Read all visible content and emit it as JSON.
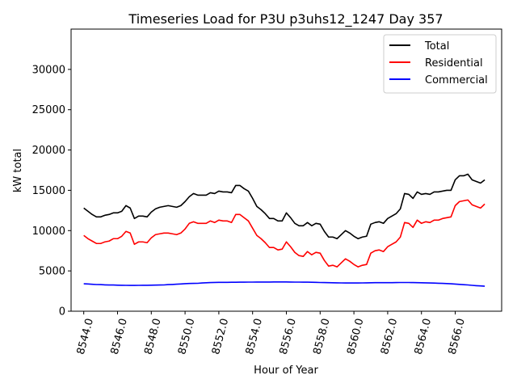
{
  "chart_data": {
    "type": "line",
    "title": "Timeseries Load for P3U p3uhs12_1247  Day 357",
    "xlabel": "Hour of Year",
    "ylabel": "kW total",
    "xlim": [
      8543.25,
      8568.75
    ],
    "ylim": [
      0,
      35000
    ],
    "xticks": [
      8544,
      8546,
      8548,
      8550,
      8552,
      8554,
      8556,
      8558,
      8560,
      8562,
      8564,
      8566
    ],
    "xtick_labels": [
      "8544.0",
      "8546.0",
      "8548.0",
      "8550.0",
      "8552.0",
      "8554.0",
      "8556.0",
      "8558.0",
      "8560.0",
      "8562.0",
      "8564.0",
      "8566.0"
    ],
    "yticks": [
      0,
      5000,
      10000,
      15000,
      20000,
      25000,
      30000
    ],
    "ytick_labels": [
      "0",
      "5000",
      "10000",
      "15000",
      "20000",
      "25000",
      "30000"
    ],
    "legend_position": "top-right",
    "x_start": 8544,
    "x_step": 0.25,
    "series": [
      {
        "name": "Total",
        "color": "#000000",
        "values": [
          12800,
          12400,
          12000,
          11700,
          11700,
          11900,
          12000,
          12200,
          12200,
          12400,
          13100,
          12800,
          11500,
          11800,
          11800,
          11700,
          12300,
          12700,
          12900,
          13000,
          13100,
          13000,
          12900,
          13100,
          13600,
          14200,
          14600,
          14400,
          14400,
          14400,
          14700,
          14600,
          14900,
          14800,
          14800,
          14700,
          15600,
          15600,
          15200,
          14900,
          14000,
          13000,
          12600,
          12100,
          11500,
          11500,
          11200,
          11200,
          12200,
          11600,
          10900,
          10600,
          10600,
          11000,
          10600,
          10900,
          10800,
          9900,
          9200,
          9200,
          9000,
          9500,
          10000,
          9700,
          9300,
          9000,
          9200,
          9300,
          10800,
          11000,
          11100,
          10900,
          11500,
          11800,
          12100,
          12700,
          14600,
          14500,
          14000,
          14800,
          14500,
          14600,
          14500,
          14800,
          14800,
          14900,
          15000,
          15000,
          16300,
          16800,
          16800,
          17000,
          16300,
          16100,
          15900,
          16300
        ]
      },
      {
        "name": "Residential",
        "color": "#ff0000",
        "values": [
          9400,
          9000,
          8700,
          8400,
          8400,
          8600,
          8700,
          9000,
          9000,
          9300,
          9900,
          9700,
          8300,
          8600,
          8600,
          8500,
          9100,
          9500,
          9600,
          9700,
          9700,
          9600,
          9500,
          9700,
          10200,
          10900,
          11100,
          10900,
          10900,
          10900,
          11200,
          11000,
          11300,
          11200,
          11200,
          11000,
          12000,
          12000,
          11600,
          11200,
          10300,
          9400,
          9000,
          8500,
          7900,
          7900,
          7600,
          7700,
          8600,
          8000,
          7300,
          6900,
          6800,
          7400,
          7000,
          7300,
          7200,
          6300,
          5600,
          5700,
          5500,
          6000,
          6500,
          6200,
          5800,
          5500,
          5700,
          5800,
          7200,
          7500,
          7600,
          7400,
          8000,
          8300,
          8600,
          9200,
          11000,
          10900,
          10400,
          11300,
          10900,
          11100,
          11000,
          11300,
          11300,
          11500,
          11600,
          11700,
          13100,
          13600,
          13700,
          13800,
          13200,
          13000,
          12800,
          13300
        ]
      },
      {
        "name": "Commercial",
        "color": "#0000ff",
        "values": [
          3400,
          3380,
          3340,
          3310,
          3300,
          3270,
          3250,
          3250,
          3230,
          3220,
          3210,
          3200,
          3200,
          3210,
          3220,
          3220,
          3230,
          3240,
          3250,
          3260,
          3300,
          3320,
          3350,
          3380,
          3420,
          3440,
          3450,
          3460,
          3500,
          3530,
          3550,
          3570,
          3580,
          3580,
          3580,
          3590,
          3590,
          3600,
          3600,
          3610,
          3610,
          3620,
          3620,
          3620,
          3620,
          3630,
          3630,
          3630,
          3630,
          3620,
          3610,
          3610,
          3600,
          3600,
          3590,
          3580,
          3560,
          3550,
          3540,
          3530,
          3520,
          3510,
          3500,
          3500,
          3500,
          3500,
          3510,
          3520,
          3530,
          3540,
          3540,
          3540,
          3540,
          3540,
          3550,
          3560,
          3560,
          3560,
          3550,
          3540,
          3530,
          3520,
          3500,
          3490,
          3470,
          3450,
          3430,
          3400,
          3370,
          3330,
          3290,
          3260,
          3210,
          3170,
          3140,
          3100
        ]
      }
    ]
  }
}
